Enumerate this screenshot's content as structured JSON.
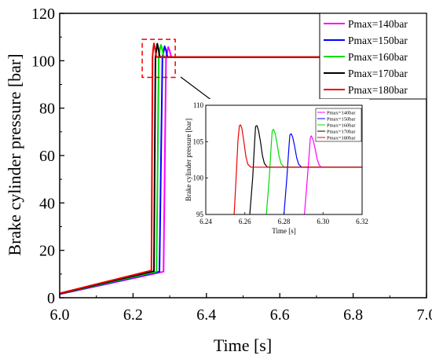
{
  "chart_data": [
    {
      "type": "line",
      "title": "",
      "xlabel": "Time [s]",
      "ylabel": "Brake cylinder pressure [bar]",
      "xlim": [
        6.0,
        7.0
      ],
      "ylim": [
        0,
        120
      ],
      "xticks": [
        "6.0",
        "6.2",
        "6.4",
        "6.6",
        "6.8",
        "7.0"
      ],
      "yticks": [
        "0",
        "20",
        "40",
        "60",
        "80",
        "100",
        "120"
      ],
      "grid": false,
      "legend_position": "top-right",
      "series": [
        {
          "name": "Pmax=140bar",
          "color": "#ff00ff",
          "x": [
            6.0,
            6.283,
            6.29,
            6.293,
            6.296,
            6.3,
            6.303,
            6.306,
            6.31,
            7.0
          ],
          "y": [
            1.5,
            11,
            101.5,
            103.5,
            105.8,
            104.2,
            102.1,
            101.5,
            101.5,
            101.5
          ]
        },
        {
          "name": "Pmax=150bar",
          "color": "#0000ff",
          "x": [
            6.0,
            6.272,
            6.28,
            6.283,
            6.286,
            6.29,
            6.293,
            6.296,
            6.3,
            7.0
          ],
          "y": [
            1.6,
            11,
            101.5,
            103.8,
            106.1,
            104.4,
            102.1,
            101.5,
            101.5,
            101.5
          ]
        },
        {
          "name": "Pmax=160bar",
          "color": "#00dd00",
          "x": [
            6.0,
            6.264,
            6.27,
            6.273,
            6.276,
            6.28,
            6.283,
            6.286,
            6.29,
            7.0
          ],
          "y": [
            1.7,
            11,
            101.5,
            104.5,
            106.7,
            104.6,
            102.1,
            101.5,
            101.5,
            101.5
          ]
        },
        {
          "name": "Pmax=170bar",
          "color": "#000000",
          "x": [
            6.0,
            6.257,
            6.261,
            6.264,
            6.266,
            6.269,
            6.272,
            6.275,
            6.279,
            7.0
          ],
          "y": [
            1.8,
            11.2,
            101.5,
            104.8,
            107.2,
            105.2,
            102.2,
            101.5,
            101.5,
            101.5
          ]
        },
        {
          "name": "Pmax=180bar",
          "color": "#ee0000",
          "x": [
            6.0,
            6.25,
            6.253,
            6.255,
            6.257,
            6.26,
            6.263,
            6.266,
            6.27,
            7.0
          ],
          "y": [
            1.9,
            11.5,
            101.5,
            105.2,
            107.3,
            105.0,
            102.0,
            101.5,
            101.5,
            101.5
          ]
        }
      ]
    },
    {
      "type": "line",
      "title": "",
      "xlabel": "Time [s]",
      "ylabel": "Brake cylinder pressure [bar]",
      "xlim": [
        6.24,
        6.32
      ],
      "ylim": [
        95,
        110
      ],
      "xticks": [
        "6.24",
        "6.26",
        "6.28",
        "6.30",
        "6.32"
      ],
      "yticks": [
        "95",
        "100",
        "105",
        "110"
      ],
      "grid": false,
      "legend_position": "top-right",
      "series": [
        {
          "name": "Pmax=140bar",
          "color": "#ff00ff",
          "x": [
            6.2905,
            6.292,
            6.293,
            6.2935,
            6.294,
            6.295,
            6.296,
            6.297,
            6.298,
            6.299,
            6.32
          ],
          "y": [
            95,
            100,
            103.5,
            105.5,
            105.8,
            105.2,
            104,
            102.6,
            101.8,
            101.5,
            101.5
          ]
        },
        {
          "name": "Pmax=150bar",
          "color": "#0000ff",
          "x": [
            6.28,
            6.2815,
            6.2825,
            6.283,
            6.2837,
            6.2845,
            6.2855,
            6.2865,
            6.2875,
            6.289,
            6.32
          ],
          "y": [
            95,
            100,
            104,
            105.9,
            106.1,
            105.6,
            104.3,
            102.8,
            101.9,
            101.5,
            101.5
          ]
        },
        {
          "name": "Pmax=160bar",
          "color": "#00dd00",
          "x": [
            6.271,
            6.2725,
            6.2735,
            6.274,
            6.2747,
            6.2755,
            6.2765,
            6.2775,
            6.2785,
            6.28,
            6.32
          ],
          "y": [
            95,
            100,
            104.5,
            106.5,
            106.7,
            106.1,
            104.7,
            103,
            102,
            101.5,
            101.5
          ]
        },
        {
          "name": "Pmax=170bar",
          "color": "#000000",
          "x": [
            6.2625,
            6.264,
            6.265,
            6.2655,
            6.2662,
            6.267,
            6.268,
            6.269,
            6.27,
            6.2715,
            6.32
          ],
          "y": [
            95,
            100,
            105,
            107.1,
            107.2,
            106.5,
            105,
            103.1,
            102,
            101.5,
            101.5
          ]
        },
        {
          "name": "Pmax=180bar",
          "color": "#ee0000",
          "x": [
            6.2545,
            6.2555,
            6.2565,
            6.2572,
            6.2578,
            6.2585,
            6.2595,
            6.2605,
            6.2615,
            6.263,
            6.32
          ],
          "y": [
            95,
            100,
            105.2,
            107.2,
            107.3,
            106.8,
            105,
            103,
            101.9,
            101.5,
            101.5
          ]
        }
      ]
    }
  ]
}
